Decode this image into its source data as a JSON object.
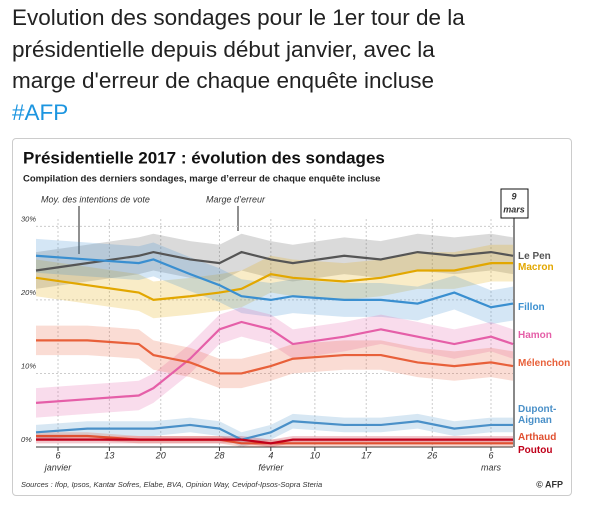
{
  "tweet": {
    "lines": [
      "Evolution des sondages pour le 1er tour de la",
      "présidentielle depuis début janvier, avec la",
      "marge d'erreur de chaque enquête incluse"
    ],
    "hashtag": "#AFP"
  },
  "chart_data": {
    "type": "line",
    "title": "Présidentielle 2017 : évolution des sondages",
    "subtitle": "Compilation des derniers sondages, marge d’erreur de chaque enquête incluse",
    "annotations": [
      "Moy. des intentions de vote",
      "Marge d’erreur"
    ],
    "current_date": [
      "9",
      "mars"
    ],
    "source": "Sources : Ifop, Ipsos, Kantar Sofres, Elabe, BVA, Opinion Way, Cevipof-Ipsos-Sopra Steria",
    "credit": "© AFP",
    "x": [
      3,
      10,
      17,
      19,
      24,
      28,
      31,
      35,
      38,
      45,
      50,
      55,
      60,
      65,
      68
    ],
    "xlim": [
      3,
      68
    ],
    "xticks": [
      {
        "value": 6,
        "label": "6"
      },
      {
        "value": 13,
        "label": "13"
      },
      {
        "value": 20,
        "label": "20"
      },
      {
        "value": 28,
        "label": "28"
      },
      {
        "value": 35,
        "label": "4"
      },
      {
        "value": 41,
        "label": "10"
      },
      {
        "value": 48,
        "label": "17"
      },
      {
        "value": 57,
        "label": "26"
      },
      {
        "value": 65,
        "label": "6"
      }
    ],
    "month_labels": [
      {
        "value": 6,
        "label": "janvier"
      },
      {
        "value": 35,
        "label": "février"
      },
      {
        "value": 65,
        "label": "mars"
      }
    ],
    "ylim": [
      0,
      31
    ],
    "yticks": [
      {
        "value": 0,
        "label": "0%"
      },
      {
        "value": 10,
        "label": "10%"
      },
      {
        "value": 20,
        "label": "20%"
      },
      {
        "value": 30,
        "label": "30%"
      }
    ],
    "grid": true,
    "series": [
      {
        "name": "Le Pen",
        "color": "#555555",
        "error": 2.5,
        "values": [
          24,
          25,
          26,
          26.5,
          25.5,
          25,
          26.5,
          25.5,
          25,
          26,
          25.5,
          26.5,
          26,
          26.5,
          26
        ]
      },
      {
        "name": "Macron",
        "color": "#e2a700",
        "error": 2.5,
        "values": [
          23,
          22,
          21,
          20,
          20.5,
          21,
          21.5,
          23.5,
          23,
          22.5,
          23,
          24,
          24,
          25,
          25
        ]
      },
      {
        "name": "Fillon",
        "color": "#3a8fd0",
        "error": 2.3,
        "values": [
          26,
          25.5,
          25,
          25.5,
          23.5,
          22,
          20.5,
          20,
          20.5,
          20,
          20,
          19.5,
          21,
          19,
          19.5
        ]
      },
      {
        "name": "Hamon",
        "color": "#e55fa8",
        "error": 2,
        "values": [
          6,
          6.5,
          7,
          8,
          12,
          16,
          17,
          16,
          14,
          15,
          16,
          15,
          14,
          15,
          14
        ]
      },
      {
        "name": "Mélenchon",
        "color": "#e8603a",
        "error": 2,
        "values": [
          14.5,
          14.5,
          14,
          12.5,
          11.5,
          10,
          10,
          11,
          12,
          12.5,
          12.5,
          11.5,
          11,
          11.5,
          11
        ]
      },
      {
        "name": "Dupont-Aignan",
        "color": "#4a90c8",
        "error": 1,
        "values": [
          2,
          2.5,
          2.5,
          2.5,
          3,
          2.5,
          1,
          2,
          3.5,
          3,
          3,
          3.5,
          2.5,
          3,
          3
        ]
      },
      {
        "name": "Arthaud",
        "color": "#e05030",
        "error": 0.5,
        "values": [
          1.5,
          1.5,
          1,
          1,
          1,
          1,
          0.5,
          0.5,
          0.5,
          0.5,
          0.5,
          0.5,
          0.5,
          0.5,
          0.5
        ]
      },
      {
        "name": "Poutou",
        "color": "#c0001a",
        "error": 0.5,
        "values": [
          1,
          1,
          1,
          1,
          1,
          1,
          1,
          0.5,
          1,
          1,
          1,
          1,
          1,
          1,
          1
        ]
      }
    ]
  }
}
